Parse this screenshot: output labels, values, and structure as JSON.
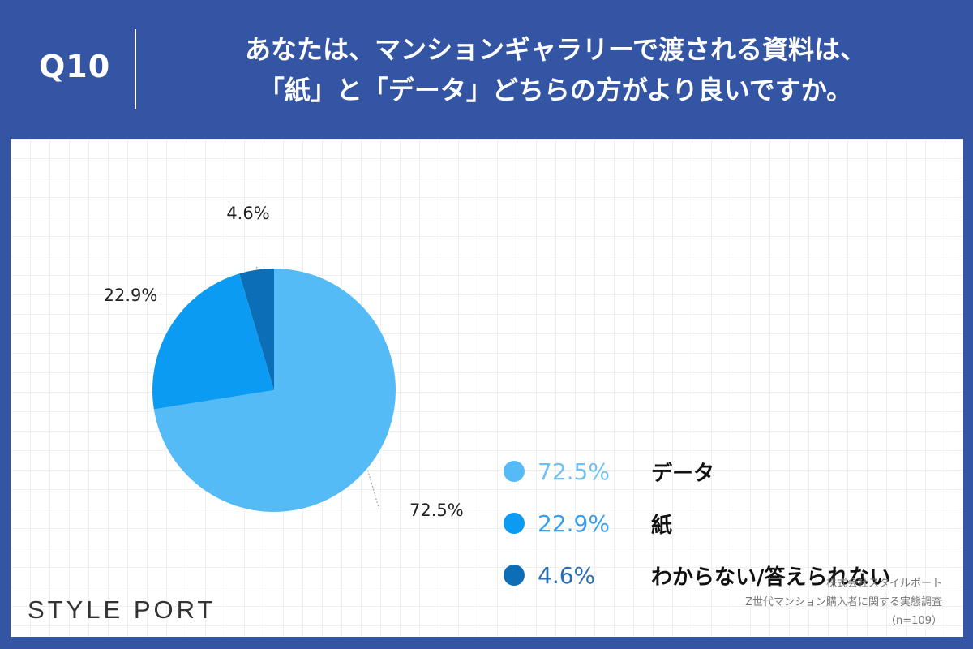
{
  "header": {
    "question_number": "Q10",
    "title_line1": "あなたは、マンションギャラリーで渡される資料は、",
    "title_line2": "「紙」と「データ」どちらの方がより良いですか。"
  },
  "chart_data": {
    "type": "pie",
    "categories": [
      "データ",
      "紙",
      "わからない/答えられない"
    ],
    "values": [
      72.5,
      22.9,
      4.6
    ],
    "value_labels": [
      "72.5%",
      "22.9%",
      "4.6%"
    ],
    "colors": [
      "#55bbf7",
      "#0b9bf2",
      "#0d6eb8"
    ],
    "legend_text_colors": [
      "#6fc2f6",
      "#3a9ef0",
      "#2a6db0"
    ],
    "start": "top (12 o'clock), clockwise",
    "legend_placement": "right",
    "grid": false
  },
  "brand": {
    "name": "STYLE PORT"
  },
  "source": {
    "company": "株式会社スタイルポート",
    "survey": "Z世代マンション購入者に関する実態調査",
    "sample": "（n=109）"
  }
}
